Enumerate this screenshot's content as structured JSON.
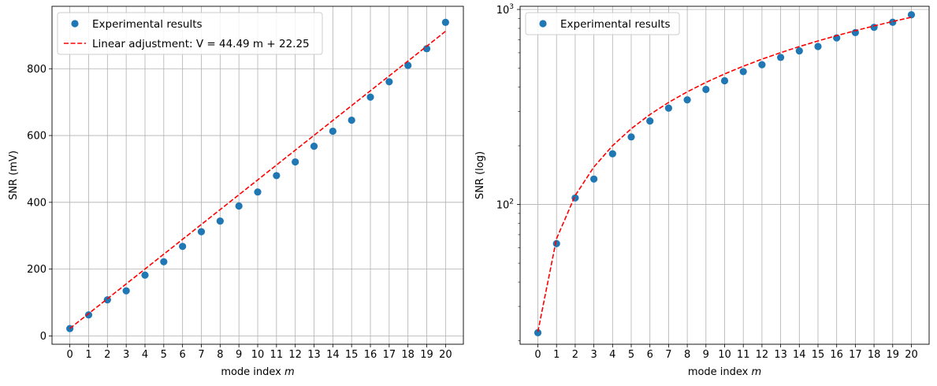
{
  "chart_data": [
    {
      "type": "scatter",
      "x": [
        0,
        1,
        2,
        3,
        4,
        5,
        6,
        7,
        8,
        9,
        10,
        11,
        12,
        13,
        14,
        15,
        16,
        17,
        18,
        19,
        20
      ],
      "xticks": [
        "0",
        "1",
        "2",
        "3",
        "4",
        "5",
        "6",
        "7",
        "8",
        "9",
        "10",
        "11",
        "12",
        "13",
        "14",
        "15",
        "16",
        "17",
        "18",
        "19",
        "20"
      ],
      "xlabel": "mode index m",
      "ylabel": "SNR (mV)",
      "xlim": [
        -0.95,
        20.95
      ],
      "ylim": [
        -25,
        987
      ],
      "yscale": "linear",
      "yticks": [
        0,
        200,
        400,
        600,
        800
      ],
      "ytick_labels": [
        "0",
        "200",
        "400",
        "600",
        "800"
      ],
      "grid": true,
      "legend_position": "upper-left",
      "series": [
        {
          "name": "Experimental results",
          "kind": "scatter",
          "color": "#1f77b4",
          "values": [
            22,
            63,
            108,
            135,
            182,
            222,
            268,
            312,
            344,
            389,
            431,
            480,
            521,
            568,
            613,
            646,
            715,
            761,
            810,
            860,
            939
          ]
        },
        {
          "name": "Linear adjustment: V = 44.49 m + 22.25",
          "kind": "line",
          "style": "dashed",
          "color": "#ff0000",
          "values": [
            22.25,
            66.74,
            111.23,
            155.72,
            200.21,
            244.7,
            289.19,
            333.68,
            378.17,
            422.66,
            467.15,
            511.64,
            556.13,
            600.62,
            645.11,
            689.6,
            734.09,
            778.58,
            823.07,
            867.56,
            912.05
          ]
        }
      ]
    },
    {
      "type": "scatter",
      "x": [
        0,
        1,
        2,
        3,
        4,
        5,
        6,
        7,
        8,
        9,
        10,
        11,
        12,
        13,
        14,
        15,
        16,
        17,
        18,
        19,
        20
      ],
      "xticks": [
        "0",
        "1",
        "2",
        "3",
        "4",
        "5",
        "6",
        "7",
        "8",
        "9",
        "10",
        "11",
        "12",
        "13",
        "14",
        "15",
        "16",
        "17",
        "18",
        "19",
        "20"
      ],
      "xlabel": "mode index m",
      "ylabel": "SNR  (log)",
      "xlim": [
        -0.95,
        20.95
      ],
      "ylim": [
        19.2,
        1038
      ],
      "yscale": "log",
      "major_ticks": [
        {
          "value": 100,
          "base": "10",
          "exp": "2"
        },
        {
          "value": 1000,
          "base": "10",
          "exp": "3"
        }
      ],
      "minor_ticks": [
        20,
        30,
        40,
        50,
        60,
        70,
        80,
        90,
        200,
        300,
        400,
        500,
        600,
        700,
        800,
        900
      ],
      "grid": true,
      "legend_position": "upper-left",
      "series": [
        {
          "name": "Experimental results",
          "kind": "scatter",
          "color": "#1f77b4",
          "values": [
            22,
            63,
            108,
            135,
            182,
            222,
            268,
            312,
            344,
            389,
            431,
            480,
            521,
            568,
            613,
            646,
            715,
            761,
            810,
            860,
            939
          ]
        },
        {
          "kind": "line",
          "style": "dashed",
          "color": "#ff0000",
          "values": [
            22.25,
            66.74,
            111.23,
            155.72,
            200.21,
            244.7,
            289.19,
            333.68,
            378.17,
            422.66,
            467.15,
            511.64,
            556.13,
            600.62,
            645.11,
            689.6,
            734.09,
            778.58,
            823.07,
            867.56,
            912.05
          ]
        }
      ]
    }
  ]
}
